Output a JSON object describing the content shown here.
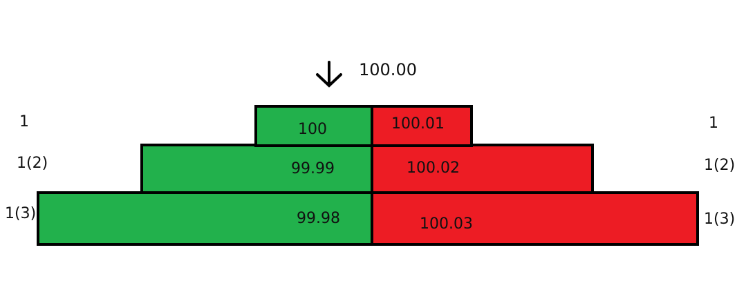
{
  "colors": {
    "bid": "#22b14c",
    "ask": "#ed1c24",
    "border": "#000000"
  },
  "indicator": {
    "icon": "arrow-down-icon",
    "price": "100.00"
  },
  "rows": [
    {
      "left_label": "1",
      "bid": "100",
      "ask": "100.01",
      "right_label": "1"
    },
    {
      "left_label": "1(2)",
      "bid": "99.99",
      "ask": "100.02",
      "right_label": "1(2)"
    },
    {
      "left_label": "1(3)",
      "bid": "99.98",
      "ask": "100.03",
      "right_label": "1(3)"
    }
  ]
}
